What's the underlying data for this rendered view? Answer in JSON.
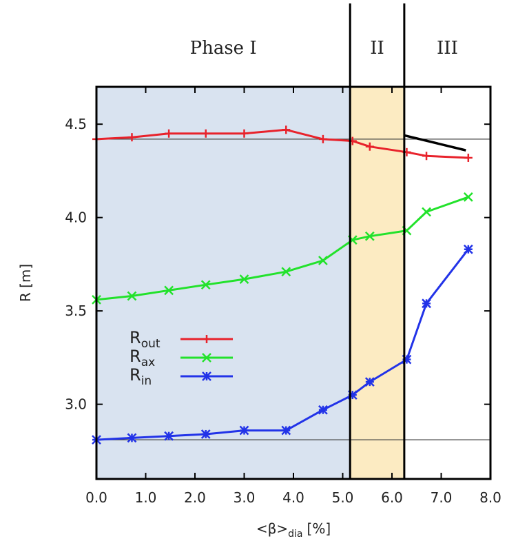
{
  "chart_data": {
    "type": "line",
    "xlabel": {
      "main": "<β>",
      "sub": "dia",
      "unit": "[%]"
    },
    "ylabel": "R [m]",
    "xlim": [
      0,
      8
    ],
    "ylim": [
      2.6,
      4.7
    ],
    "xticks": [
      {
        "value": 0,
        "label": "0.0"
      },
      {
        "value": 1,
        "label": "1.0"
      },
      {
        "value": 2,
        "label": "2.0"
      },
      {
        "value": 3,
        "label": "3.0"
      },
      {
        "value": 4,
        "label": "4.0"
      },
      {
        "value": 5,
        "label": "5.0"
      },
      {
        "value": 6,
        "label": "6.0"
      },
      {
        "value": 7,
        "label": "7.0"
      },
      {
        "value": 8,
        "label": "8.0"
      }
    ],
    "yticks": [
      {
        "value": 3.0,
        "label": "3.0"
      },
      {
        "value": 3.5,
        "label": "3.5"
      },
      {
        "value": 4.0,
        "label": "4.0"
      },
      {
        "value": 4.5,
        "label": "4.5"
      }
    ],
    "phases": [
      {
        "label": "Phase I",
        "x_start": 0,
        "x_end": 5.15,
        "color": "#d9e3f0"
      },
      {
        "label": "II",
        "x_start": 5.15,
        "x_end": 6.25,
        "color": "#fcebc2"
      },
      {
        "label": "III",
        "x_start": 6.25,
        "x_end": 8,
        "color": "#ffffff"
      }
    ],
    "phase_boundaries": [
      5.15,
      6.25
    ],
    "reference_lines": [
      4.42,
      2.81
    ],
    "trend_segment": {
      "x": [
        6.25,
        7.5
      ],
      "y": [
        4.44,
        4.36
      ],
      "color": "#000000"
    },
    "series": [
      {
        "name": "R",
        "name_sub": "out",
        "color": "#e8222b",
        "marker": "plus",
        "x": [
          0.0,
          0.72,
          1.47,
          2.22,
          3.0,
          3.85,
          4.6,
          5.2,
          5.55,
          6.3,
          6.7,
          7.55
        ],
        "values": [
          4.42,
          4.43,
          4.45,
          4.45,
          4.45,
          4.47,
          4.42,
          4.41,
          4.38,
          4.35,
          4.33,
          4.32
        ]
      },
      {
        "name": "R",
        "name_sub": "ax",
        "color": "#22e22b",
        "marker": "cross",
        "x": [
          0.0,
          0.72,
          1.47,
          2.22,
          3.0,
          3.85,
          4.6,
          5.2,
          5.55,
          6.3,
          6.7,
          7.55
        ],
        "values": [
          3.56,
          3.58,
          3.61,
          3.64,
          3.67,
          3.71,
          3.77,
          3.88,
          3.9,
          3.93,
          4.03,
          4.11
        ]
      },
      {
        "name": "R",
        "name_sub": "in",
        "color": "#2233e8",
        "marker": "star",
        "x": [
          0.0,
          0.72,
          1.47,
          2.22,
          3.0,
          3.85,
          4.6,
          5.2,
          5.55,
          6.3,
          6.7,
          7.55
        ],
        "values": [
          2.81,
          2.82,
          2.83,
          2.84,
          2.86,
          2.86,
          2.97,
          3.05,
          3.12,
          3.24,
          3.54,
          3.83
        ]
      }
    ],
    "legend_position": "center-left"
  }
}
